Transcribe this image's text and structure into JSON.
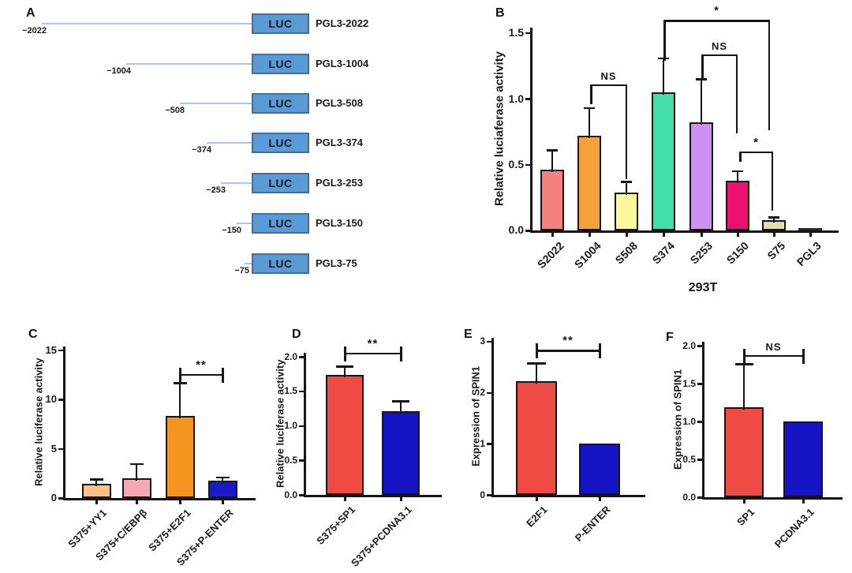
{
  "panel_a": {
    "letter": "A",
    "box_label": "LUC",
    "colors": {
      "box_fill": "#5b9bd5",
      "box_border": "#3f6fa0",
      "line": "#a9c9e9"
    },
    "constructs": [
      {
        "position": "−2022",
        "name": "PGL3-2022"
      },
      {
        "position": "−1004",
        "name": "PGL3-1004"
      },
      {
        "position": "−508",
        "name": "PGL3-508"
      },
      {
        "position": "−374",
        "name": "PGL3-374"
      },
      {
        "position": "−253",
        "name": "PGL3-253"
      },
      {
        "position": "−150",
        "name": "PGL3-150"
      },
      {
        "position": "−75",
        "name": "PGL3-75"
      }
    ]
  },
  "chart_data": [
    {
      "panel": "B",
      "type": "bar",
      "ylabel": "Relative luciaferase activity",
      "xlabel": "293T",
      "ylim": [
        0,
        1.5
      ],
      "yticks": [
        0,
        0.5,
        1.0,
        1.5
      ],
      "ytick_labels": [
        "0.0",
        "0.5",
        "1.0",
        "1.5"
      ],
      "categories": [
        "S2022",
        "S1004",
        "S508",
        "S374",
        "S253",
        "S150",
        "S75",
        "PGL3"
      ],
      "values": [
        0.46,
        0.72,
        0.29,
        1.05,
        0.82,
        0.38,
        0.08,
        0.01
      ],
      "errors_plus": [
        0.15,
        0.21,
        0.08,
        0.26,
        0.33,
        0.07,
        0.02,
        0
      ],
      "bar_colors": [
        "#f5807e",
        "#f6a13e",
        "#faf79e",
        "#42dfa6",
        "#cd92f1",
        "#ee106f",
        "#e7dcb1",
        "#2b2b2b"
      ],
      "significance": [
        {
          "label": "NS",
          "from": "S1004",
          "to": "S508",
          "y": 1.11,
          "leg_from": 0.96,
          "leg_to": 0.39
        },
        {
          "label": "*",
          "from": "S374",
          "to": "S75",
          "y": 1.6,
          "leg_from": 1.29,
          "leg_to": 0.76
        },
        {
          "label": "NS",
          "from": "S253",
          "to": "S150",
          "y": 1.34,
          "leg_from": 1.15,
          "leg_to": 0.74
        },
        {
          "label": "*",
          "from": "S150",
          "to": "S75",
          "y": 0.6,
          "leg_from": 0.52,
          "leg_to": 0.15
        }
      ]
    },
    {
      "panel": "C",
      "type": "bar",
      "ylabel": "Relative luciferase activity",
      "xlabel": "",
      "ylim": [
        0,
        15
      ],
      "yticks": [
        0,
        5,
        10,
        15
      ],
      "ytick_labels": [
        "0",
        "5",
        "10",
        "15"
      ],
      "categories": [
        "S375+YY1",
        "S375+C/EBPβ",
        "S375+E2F1",
        "S375+P-ENTER"
      ],
      "values": [
        1.45,
        2.0,
        8.3,
        1.75
      ],
      "errors_plus": [
        0.45,
        1.45,
        3.4,
        0.35
      ],
      "bar_colors": [
        "#fac289",
        "#f8a8b1",
        "#f5941e",
        "#1a1ac6"
      ],
      "significance": [
        {
          "label": "**",
          "from": "S375+E2F1",
          "to": "S375+P-ENTER",
          "y": 12.6
        }
      ]
    },
    {
      "panel": "D",
      "type": "bar",
      "ylabel": "Relative luciferase activity",
      "xlabel": "",
      "ylim": [
        0,
        2
      ],
      "yticks": [
        0,
        0.5,
        1.0,
        1.5,
        2.0
      ],
      "ytick_labels": [
        "0.0",
        "0.5",
        "1.0",
        "1.5",
        "2.0"
      ],
      "categories": [
        "S375+SP1",
        "S375+PCDNA3.1"
      ],
      "values": [
        1.74,
        1.21
      ],
      "errors_plus": [
        0.12,
        0.15
      ],
      "bar_colors": [
        "#f04a44",
        "#1414c4"
      ],
      "significance": [
        {
          "label": "**",
          "from": "S375+SP1",
          "to": "S375+PCDNA3.1",
          "y": 2.06
        }
      ]
    },
    {
      "panel": "E",
      "type": "bar",
      "ylabel": "Expression of SPIN1",
      "xlabel": "",
      "ylim": [
        0,
        3
      ],
      "yticks": [
        0,
        1,
        2,
        3
      ],
      "ytick_labels": [
        "0",
        "1",
        "2",
        "3"
      ],
      "categories": [
        "E2F1",
        "P-ENTER"
      ],
      "values": [
        2.23,
        1.0
      ],
      "errors_plus": [
        0.35,
        0
      ],
      "bar_colors": [
        "#f04a44",
        "#1414c4"
      ],
      "significance": [
        {
          "label": "**",
          "from": "E2F1",
          "to": "P-ENTER",
          "y": 2.84
        }
      ]
    },
    {
      "panel": "F",
      "type": "bar",
      "ylabel": "Expression of SPIN1",
      "xlabel": "",
      "ylim": [
        0,
        2
      ],
      "yticks": [
        0,
        0.5,
        1.0,
        1.5,
        2.0
      ],
      "ytick_labels": [
        "0.0",
        "0.5",
        "1.0",
        "1.5",
        "2.0"
      ],
      "categories": [
        "SP1",
        "PCDNA3.1"
      ],
      "values": [
        1.19,
        1.0
      ],
      "errors_plus": [
        0.57,
        0
      ],
      "bar_colors": [
        "#f04a44",
        "#1414c4"
      ],
      "significance": [
        {
          "label": "NS",
          "from": "SP1",
          "to": "PCDNA3.1",
          "y": 1.88
        }
      ]
    }
  ]
}
